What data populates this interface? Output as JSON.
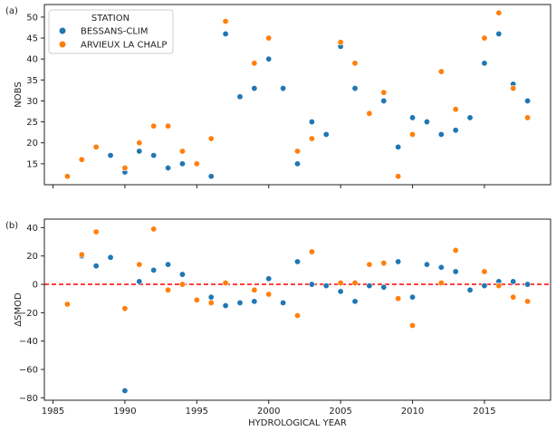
{
  "chart_data": [
    {
      "type": "scatter",
      "panel_label": "(a)",
      "ylabel": "NOBS",
      "xlabel": "",
      "xlim": [
        1984.4,
        2019.6
      ],
      "ylim": [
        10,
        53
      ],
      "yticks": [
        15,
        20,
        25,
        30,
        35,
        40,
        45,
        50
      ],
      "xticks": [
        1985,
        1990,
        1995,
        2000,
        2005,
        2010,
        2015
      ],
      "legend": {
        "title": "STATION",
        "placement": "top-left"
      },
      "series": [
        {
          "name": "BESSANS-CLIM",
          "color": "#1f77b4",
          "x": [
            1989,
            1990,
            1991,
            1992,
            1993,
            1994,
            1996,
            1997,
            1998,
            1999,
            2000,
            2001,
            2002,
            2003,
            2004,
            2005,
            2006,
            2008,
            2009,
            2010,
            2011,
            2012,
            2013,
            2014,
            2015,
            2016,
            2017,
            2018
          ],
          "y": [
            17,
            13,
            18,
            17,
            14,
            15,
            12,
            46,
            31,
            33,
            40,
            33,
            15,
            25,
            22,
            43,
            33,
            30,
            19,
            26,
            25,
            22,
            23,
            26,
            39,
            46,
            34,
            30
          ]
        },
        {
          "name": "ARVIEUX LA CHALP",
          "color": "#ff7f0e",
          "x": [
            1986,
            1987,
            1988,
            1990,
            1991,
            1992,
            1993,
            1994,
            1995,
            1996,
            1997,
            1999,
            2000,
            2002,
            2003,
            2005,
            2006,
            2007,
            2008,
            2009,
            2010,
            2012,
            2013,
            2015,
            2016,
            2017,
            2018
          ],
          "y": [
            12,
            16,
            19,
            14,
            20,
            24,
            24,
            18,
            15,
            21,
            49,
            39,
            45,
            18,
            21,
            44,
            39,
            27,
            32,
            12,
            22,
            37,
            28,
            45,
            51,
            33,
            26
          ]
        }
      ]
    },
    {
      "type": "scatter",
      "panel_label": "(b)",
      "ylabel": "ΔSMOD",
      "xlabel": "HYDROLOGICAL YEAR",
      "xlim": [
        1984.4,
        2019.6
      ],
      "ylim": [
        -81.7,
        46
      ],
      "yticks": [
        -80,
        -60,
        -40,
        -20,
        0,
        20,
        40
      ],
      "xticks": [
        1985,
        1990,
        1995,
        2000,
        2005,
        2010,
        2015
      ],
      "reference_line": {
        "y": 0,
        "color": "#ff0000",
        "style": "dashed"
      },
      "series": [
        {
          "name": "BESSANS-CLIM",
          "color": "#1f77b4",
          "x": [
            1987,
            1988,
            1989,
            1990,
            1991,
            1992,
            1993,
            1994,
            1996,
            1997,
            1998,
            1999,
            2000,
            2001,
            2002,
            2003,
            2004,
            2005,
            2006,
            2007,
            2008,
            2009,
            2010,
            2011,
            2012,
            2013,
            2014,
            2015,
            2016,
            2017,
            2018
          ],
          "y": [
            20,
            13,
            19,
            -75,
            2,
            10,
            14,
            7,
            -9,
            -15,
            -13,
            -12,
            4,
            -13,
            16,
            0,
            -1,
            -5,
            -12,
            -1,
            -2,
            16,
            -9,
            14,
            12,
            9,
            -4,
            -1,
            2,
            2,
            0
          ]
        },
        {
          "name": "ARVIEUX LA CHALP",
          "color": "#ff7f0e",
          "x": [
            1986,
            1987,
            1988,
            1990,
            1991,
            1992,
            1993,
            1994,
            1995,
            1996,
            1997,
            1999,
            2000,
            2002,
            2003,
            2005,
            2006,
            2007,
            2008,
            2009,
            2010,
            2012,
            2013,
            2015,
            2016,
            2017,
            2018
          ],
          "y": [
            -14,
            21,
            37,
            -17,
            14,
            39,
            -4,
            0,
            -11,
            -13,
            1,
            -4,
            -7,
            -22,
            23,
            1,
            1,
            14,
            15,
            -10,
            -29,
            1,
            24,
            9,
            -1,
            -9,
            -12
          ]
        }
      ]
    }
  ]
}
